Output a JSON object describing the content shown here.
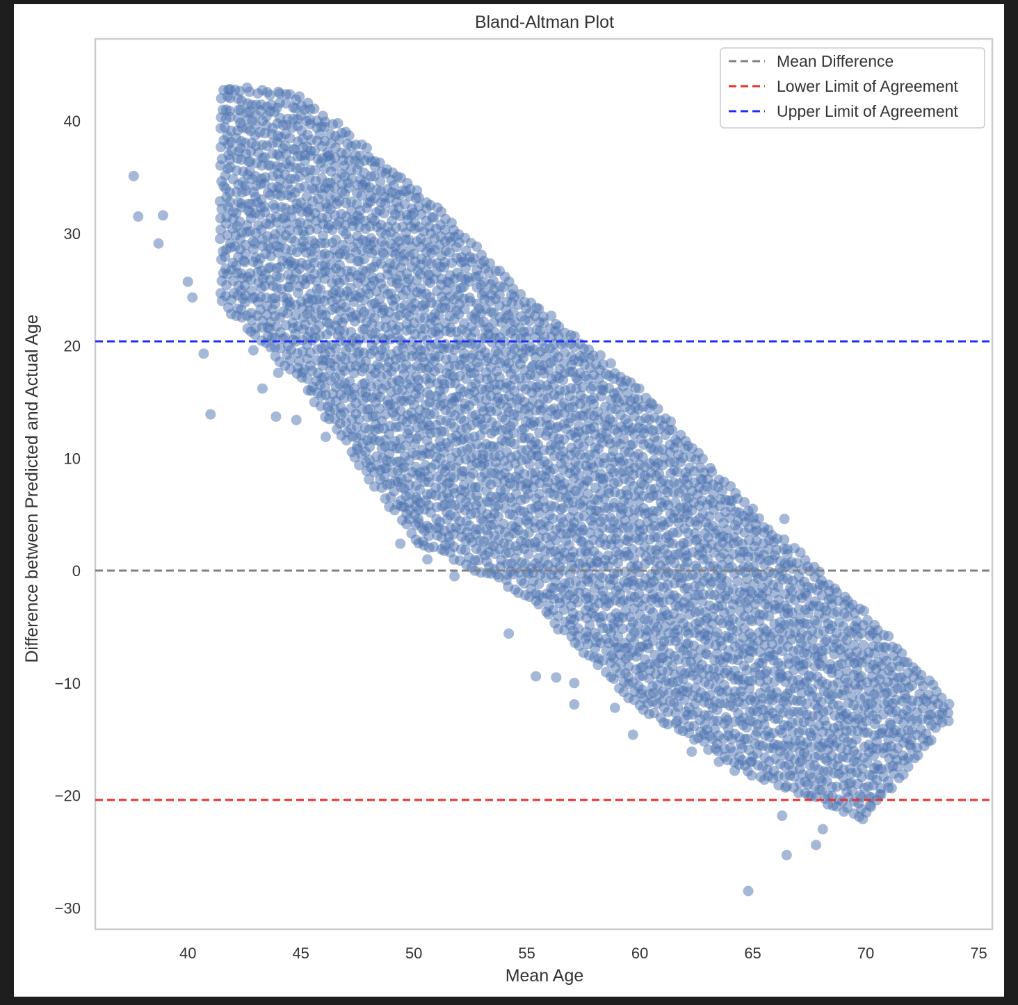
{
  "chart_data": {
    "type": "scatter",
    "title": "Bland-Altman Plot",
    "xlabel": "Mean Age",
    "ylabel": "Difference between Predicted and Actual Age",
    "xlim": [
      35.9,
      75.6
    ],
    "ylim": [
      -31.9,
      47.3
    ],
    "xticks": [
      40,
      45,
      50,
      55,
      60,
      65,
      70,
      75
    ],
    "yticks": [
      -30,
      -20,
      -10,
      0,
      10,
      20,
      30,
      40
    ],
    "xtick_labels": [
      "40",
      "45",
      "50",
      "55",
      "60",
      "65",
      "70",
      "75"
    ],
    "ytick_labels": [
      "−30",
      "−20",
      "−10",
      "0",
      "10",
      "20",
      "30",
      "40"
    ],
    "grid": false,
    "legend_position": "upper right",
    "point_color": "#4c72b0",
    "point_alpha": 0.5,
    "points": {
      "description_band": "dense diagonal band of points, difference decreasing as mean age increases",
      "bands": [
        {
          "x": 41.5,
          "y_low": 24,
          "y_high": 43
        },
        {
          "x": 45.0,
          "y_low": 17,
          "y_high": 42
        },
        {
          "x": 50.0,
          "y_low": 3,
          "y_high": 34
        },
        {
          "x": 55.0,
          "y_low": -2,
          "y_high": 24
        },
        {
          "x": 60.0,
          "y_low": -12,
          "y_high": 16
        },
        {
          "x": 65.0,
          "y_low": -18,
          "y_high": 5
        },
        {
          "x": 70.0,
          "y_low": -22,
          "y_high": -4
        },
        {
          "x": 73.7,
          "y_low": -13,
          "y_high": -12
        }
      ],
      "outliers": [
        [
          37.6,
          35.1
        ],
        [
          37.8,
          31.5
        ],
        [
          38.7,
          29.1
        ],
        [
          38.9,
          31.6
        ],
        [
          40.2,
          24.3
        ],
        [
          40.0,
          25.7
        ],
        [
          40.7,
          19.3
        ],
        [
          41.0,
          13.9
        ],
        [
          44.0,
          17.6
        ],
        [
          43.9,
          13.7
        ],
        [
          44.8,
          13.4
        ],
        [
          43.3,
          16.2
        ],
        [
          42.9,
          19.6
        ],
        [
          46.1,
          11.9
        ],
        [
          47.5,
          10.8
        ],
        [
          48.7,
          9.1
        ],
        [
          49.3,
          7.9
        ],
        [
          49.4,
          2.4
        ],
        [
          50.1,
          6.5
        ],
        [
          50.2,
          4.6
        ],
        [
          50.4,
          2.6
        ],
        [
          50.6,
          1.0
        ],
        [
          51.8,
          -0.5
        ],
        [
          54.2,
          -5.6
        ],
        [
          55.4,
          -9.4
        ],
        [
          56.3,
          -9.5
        ],
        [
          57.1,
          -11.9
        ],
        [
          57.1,
          -10.0
        ],
        [
          58.9,
          -12.2
        ],
        [
          59.7,
          -14.6
        ],
        [
          64.8,
          -28.5
        ],
        [
          66.5,
          -25.3
        ],
        [
          66.3,
          -21.8
        ],
        [
          67.8,
          -24.4
        ],
        [
          68.1,
          -23.0
        ],
        [
          62.3,
          -16.1
        ],
        [
          63.5,
          -17.0
        ],
        [
          64.2,
          -17.8
        ],
        [
          66.4,
          4.6
        ],
        [
          65.0,
          5.5
        ]
      ]
    },
    "lines": [
      {
        "name": "Mean Difference",
        "y": 0.0,
        "color": "#808080"
      },
      {
        "name": "Lower Limit of Agreement",
        "y": -20.4,
        "color": "#e8322a"
      },
      {
        "name": "Upper Limit of Agreement",
        "y": 20.4,
        "color": "#1f2ef5"
      }
    ]
  }
}
